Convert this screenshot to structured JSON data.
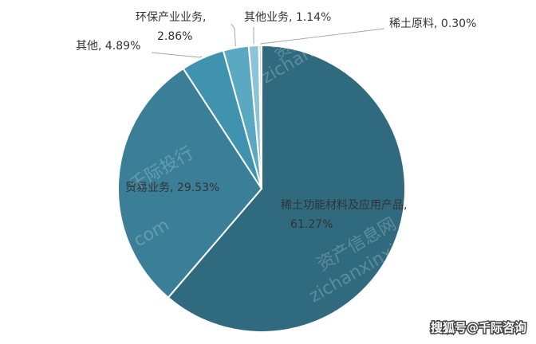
{
  "chart_data": {
    "type": "pie",
    "categories": [
      "稀土功能材料及应用产品",
      "贸易业务",
      "其他",
      "环保产业业务",
      "其他业务",
      "稀土原料"
    ],
    "values": [
      61.27,
      29.53,
      4.89,
      2.86,
      1.14,
      0.3
    ],
    "value_labels": [
      "61.27%",
      "29.53%",
      "4.89%",
      "2.86%",
      "1.14%",
      "0.30%"
    ],
    "colors": [
      "#2f6a7f",
      "#3a7f97",
      "#3f93ae",
      "#5aa8c1",
      "#8cc3d6",
      "#c3dee9"
    ]
  },
  "watermarks": [
    "资产信息网",
    "zichanxinxi",
    "千际投行",
    "com",
    "资产信息网",
    "zichanxinxi",
    "搜狐号@千际咨询"
  ]
}
